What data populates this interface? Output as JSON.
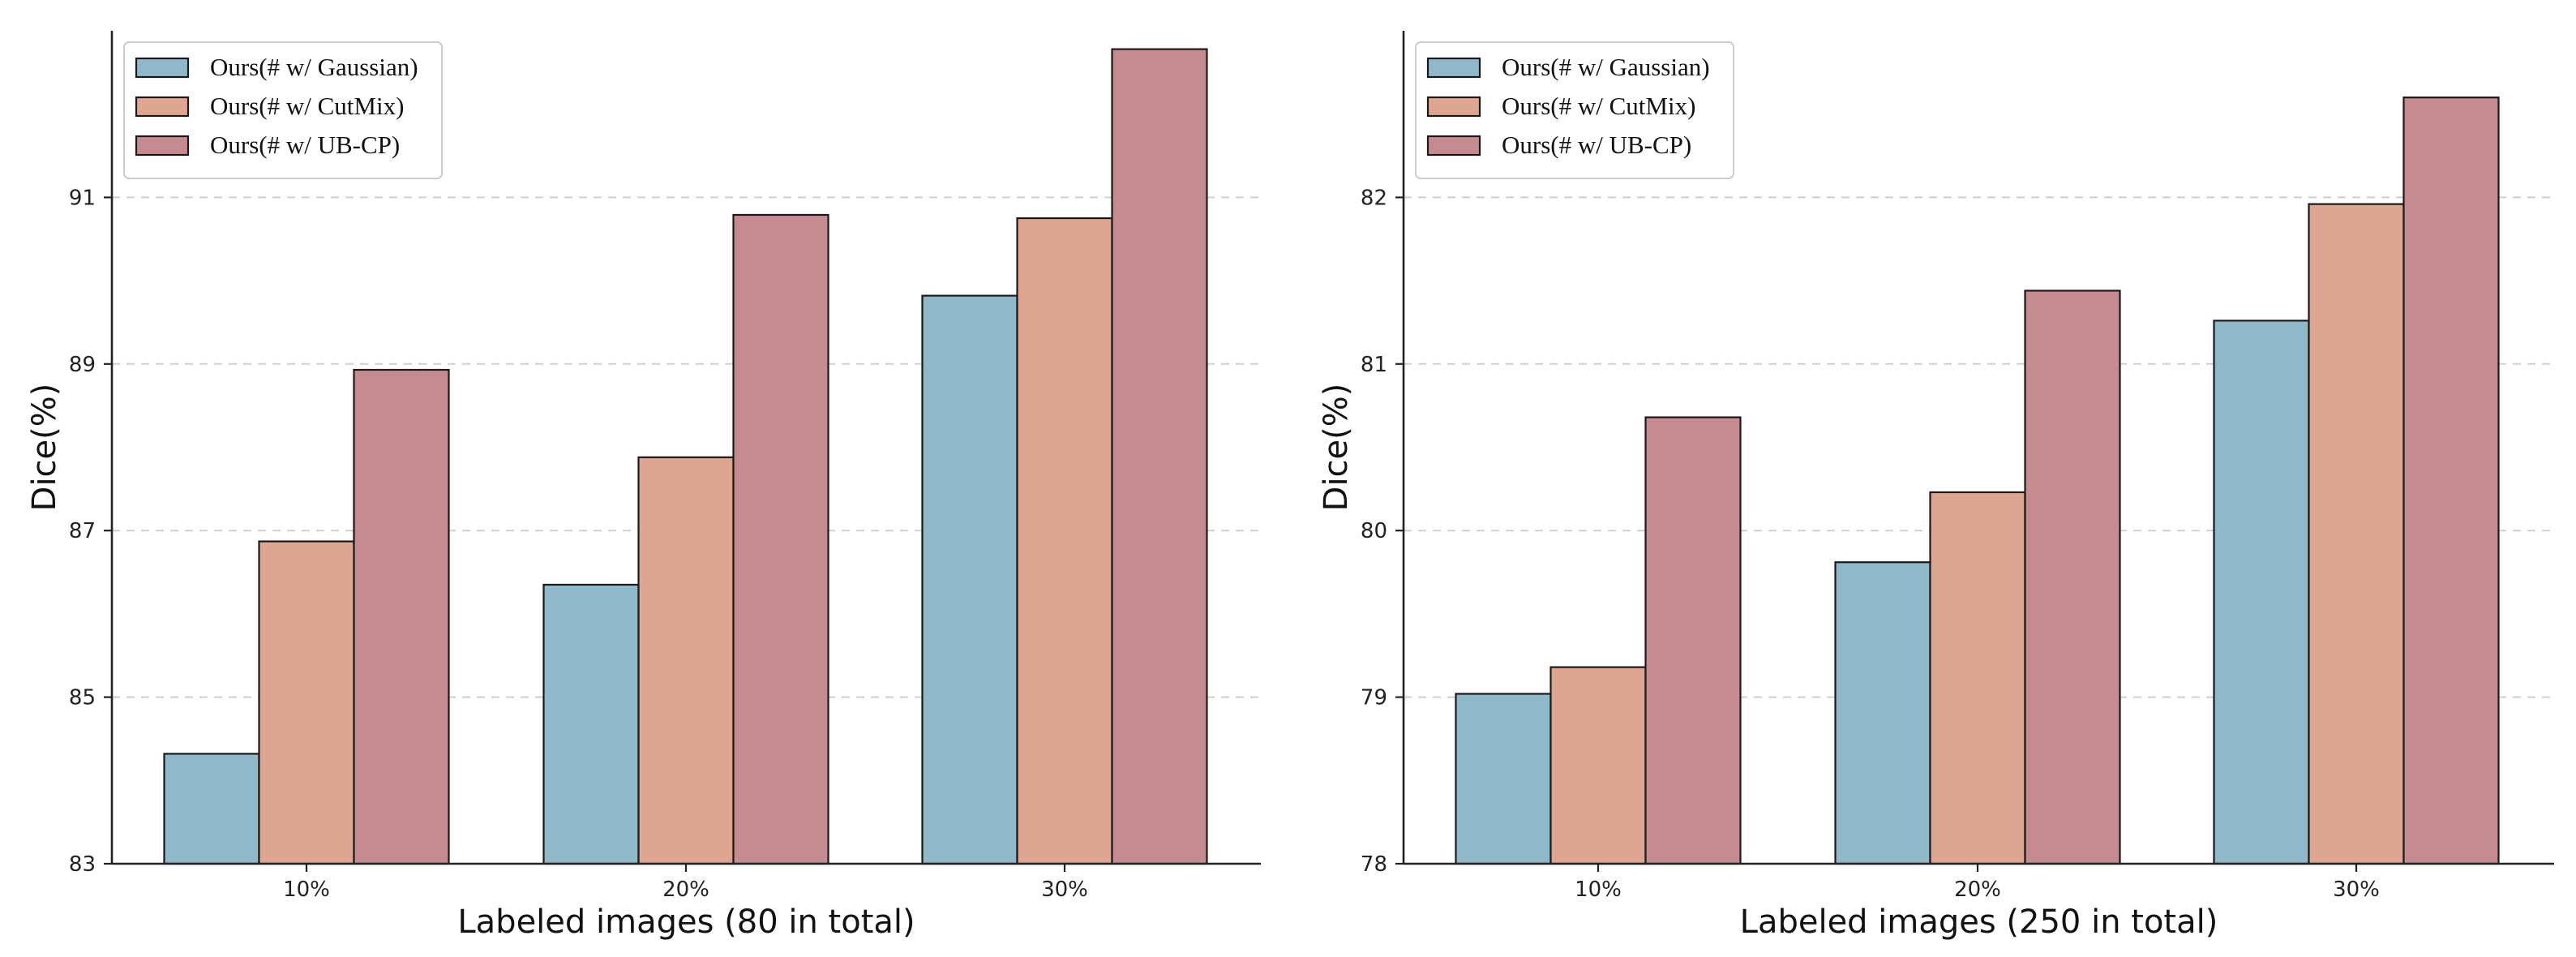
{
  "chart_data": [
    {
      "type": "bar",
      "title": "",
      "xlabel": "Labeled images (80 in total)",
      "ylabel": "Dice(%)",
      "categories": [
        "10%",
        "20%",
        "30%"
      ],
      "ylim": [
        83,
        93
      ],
      "yticks": [
        83,
        85,
        87,
        89,
        91
      ],
      "grid": true,
      "legend_position": "top-left",
      "series": [
        {
          "name": "Ours(# w/ Gaussian)",
          "color": "#8fb8c8",
          "values": [
            84.32,
            86.35,
            89.82
          ]
        },
        {
          "name": "Ours(# w/ CutMix)",
          "color": "#dea691",
          "values": [
            86.87,
            87.88,
            90.75
          ]
        },
        {
          "name": "Ours(# w/ UB-CP)",
          "color": "#c58b90",
          "values": [
            88.93,
            90.79,
            92.78
          ]
        }
      ]
    },
    {
      "type": "bar",
      "title": "",
      "xlabel": "Labeled images (250 in total)",
      "ylabel": "Dice(%)",
      "categories": [
        "10%",
        "20%",
        "30%"
      ],
      "ylim": [
        78,
        83
      ],
      "yticks": [
        78,
        79,
        80,
        81,
        82
      ],
      "grid": true,
      "legend_position": "top-left",
      "series": [
        {
          "name": "Ours(# w/ Gaussian)",
          "color": "#8fb8c8",
          "values": [
            79.02,
            79.81,
            81.26
          ]
        },
        {
          "name": "Ours(# w/ CutMix)",
          "color": "#dea691",
          "values": [
            79.18,
            80.23,
            81.96
          ]
        },
        {
          "name": "Ours(# w/ UB-CP)",
          "color": "#c58b90",
          "values": [
            80.68,
            81.44,
            82.6
          ]
        }
      ]
    }
  ]
}
